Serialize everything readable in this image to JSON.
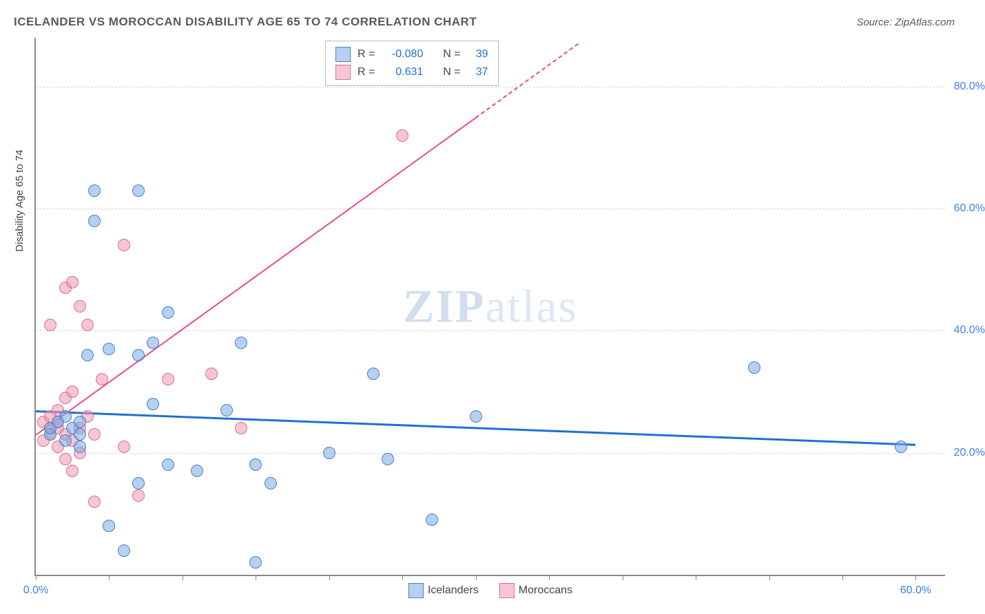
{
  "title": "ICELANDER VS MOROCCAN DISABILITY AGE 65 TO 74 CORRELATION CHART",
  "source": "Source: ZipAtlas.com",
  "ylabel": "Disability Age 65 to 74",
  "watermark_zip": "ZIP",
  "watermark_atlas": "atlas",
  "chart": {
    "type": "scatter",
    "xlim": [
      0,
      62
    ],
    "ylim": [
      0,
      88
    ],
    "xtick_positions": [
      0,
      5,
      10,
      15,
      20,
      25,
      30,
      35,
      40,
      45,
      50,
      55,
      60
    ],
    "xtick_labels": {
      "0": "0.0%",
      "60": "60.0%"
    },
    "ytick_positions": [
      20,
      40,
      60,
      80
    ],
    "ytick_labels": {
      "20": "20.0%",
      "40": "40.0%",
      "60": "60.0%",
      "80": "80.0%"
    },
    "grid_color": "#d5d5d5",
    "background_color": "#ffffff",
    "series": {
      "icelanders": {
        "label": "Icelanders",
        "color_fill": "rgba(120,170,230,0.55)",
        "color_stroke": "#4a7fc8",
        "marker_size": 18,
        "points": [
          [
            1,
            23
          ],
          [
            1,
            24
          ],
          [
            1.5,
            25
          ],
          [
            2,
            22
          ],
          [
            2,
            26
          ],
          [
            2.5,
            24
          ],
          [
            3,
            23
          ],
          [
            3,
            21
          ],
          [
            3,
            25
          ],
          [
            3.5,
            36
          ],
          [
            4,
            58
          ],
          [
            4,
            63
          ],
          [
            5,
            8
          ],
          [
            5,
            37
          ],
          [
            7,
            63
          ],
          [
            7,
            15
          ],
          [
            6,
            4
          ],
          [
            7,
            36
          ],
          [
            8,
            38
          ],
          [
            8,
            28
          ],
          [
            9,
            18
          ],
          [
            9,
            43
          ],
          [
            11,
            17
          ],
          [
            13,
            27
          ],
          [
            14,
            38
          ],
          [
            15,
            2
          ],
          [
            15,
            18
          ],
          [
            16,
            15
          ],
          [
            20,
            20
          ],
          [
            23,
            33
          ],
          [
            24,
            19
          ],
          [
            27,
            9
          ],
          [
            30,
            26
          ],
          [
            49,
            34
          ],
          [
            59,
            21
          ]
        ],
        "regression": {
          "R": -0.08,
          "N": 39,
          "y_at_x0": 27,
          "y_at_x60": 21.5
        }
      },
      "moroccans": {
        "label": "Moroccans",
        "color_fill": "rgba(240,150,175,0.55)",
        "color_stroke": "#d6708f",
        "marker_size": 18,
        "points": [
          [
            0.5,
            22
          ],
          [
            0.5,
            25
          ],
          [
            1,
            23
          ],
          [
            1,
            24
          ],
          [
            1,
            26
          ],
          [
            1,
            41
          ],
          [
            1.5,
            21
          ],
          [
            1.5,
            24
          ],
          [
            1.5,
            25
          ],
          [
            1.5,
            27
          ],
          [
            2,
            19
          ],
          [
            2,
            23
          ],
          [
            2,
            29
          ],
          [
            2,
            47
          ],
          [
            2.5,
            17
          ],
          [
            2.5,
            22
          ],
          [
            2.5,
            30
          ],
          [
            2.5,
            48
          ],
          [
            3,
            20
          ],
          [
            3,
            24
          ],
          [
            3,
            44
          ],
          [
            3.5,
            26
          ],
          [
            3.5,
            41
          ],
          [
            4,
            12
          ],
          [
            4,
            23
          ],
          [
            4.5,
            32
          ],
          [
            6,
            21
          ],
          [
            6,
            54
          ],
          [
            7,
            13
          ],
          [
            9,
            32
          ],
          [
            12,
            33
          ],
          [
            14,
            24
          ],
          [
            25,
            72
          ]
        ],
        "regression": {
          "R": 0.631,
          "N": 37,
          "y_at_x0": 23,
          "y_at_x30": 75
        }
      }
    }
  },
  "legend_stats": {
    "rows": [
      {
        "series": "icelanders",
        "R_label": "R =",
        "R_value": "-0.080",
        "N_label": "N =",
        "N_value": "39"
      },
      {
        "series": "moroccans",
        "R_label": "R =",
        "R_value": "0.631",
        "N_label": "N =",
        "N_value": "37"
      }
    ]
  },
  "bottom_legend": {
    "items": [
      {
        "series": "icelanders",
        "label": "Icelanders"
      },
      {
        "series": "moroccans",
        "label": "Moroccans"
      }
    ]
  }
}
